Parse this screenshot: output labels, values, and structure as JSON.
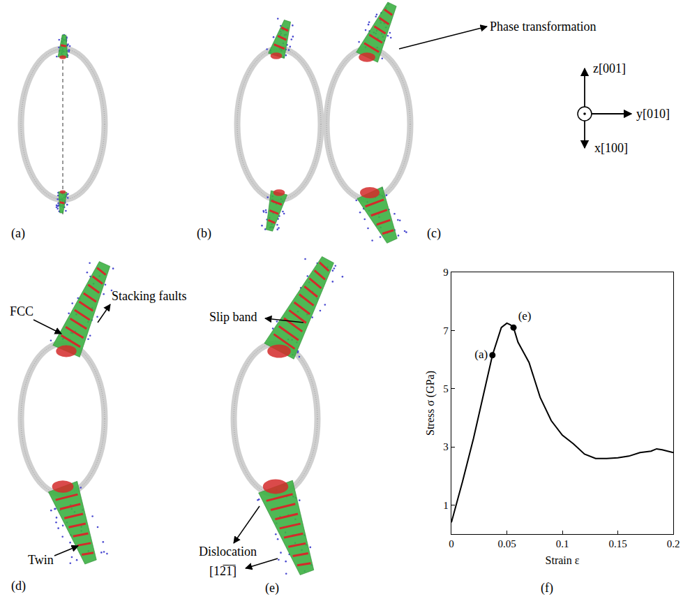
{
  "panels": [
    {
      "label": "(a)"
    },
    {
      "label": "(b)"
    },
    {
      "label": "(c)",
      "annotations": [
        "Phase transformation"
      ]
    },
    {
      "label": "(d)",
      "annotations": [
        "FCC",
        "Stacking faults",
        "Twin"
      ]
    },
    {
      "label": "(e)",
      "annotations": [
        "Slip band",
        "Dislocation",
        "[12̅1̅]"
      ]
    },
    {
      "label": "(f)"
    }
  ],
  "axes": {
    "z": "z[001]",
    "y": "y[010]",
    "x": "x[100]"
  },
  "chart_data": {
    "type": "line",
    "xlabel": "Strain ε",
    "ylabel": "Stress σ (GPa)",
    "x": [
      0,
      0.01,
      0.02,
      0.03,
      0.037,
      0.045,
      0.05,
      0.053,
      0.056,
      0.06,
      0.07,
      0.08,
      0.09,
      0.1,
      0.11,
      0.12,
      0.13,
      0.14,
      0.15,
      0.16,
      0.17,
      0.18,
      0.185,
      0.19,
      0.2
    ],
    "values": [
      0.4,
      1.8,
      3.3,
      5.0,
      6.15,
      7.1,
      7.25,
      7.2,
      7.1,
      6.6,
      5.9,
      4.7,
      3.9,
      3.4,
      3.1,
      2.75,
      2.6,
      2.6,
      2.62,
      2.68,
      2.8,
      2.85,
      2.93,
      2.9,
      2.8
    ],
    "color": "#000000",
    "points": [
      {
        "label": "(a)",
        "x": 0.037,
        "y": 6.15
      },
      {
        "label": "(e)",
        "x": 0.056,
        "y": 7.1
      }
    ],
    "xlim": [
      0,
      0.2
    ],
    "ylim": [
      0,
      9
    ],
    "xticks": [
      0,
      0.05,
      0.1,
      0.15,
      0.2
    ],
    "yticks": [
      1,
      3,
      5,
      7,
      9
    ],
    "grid": false
  }
}
